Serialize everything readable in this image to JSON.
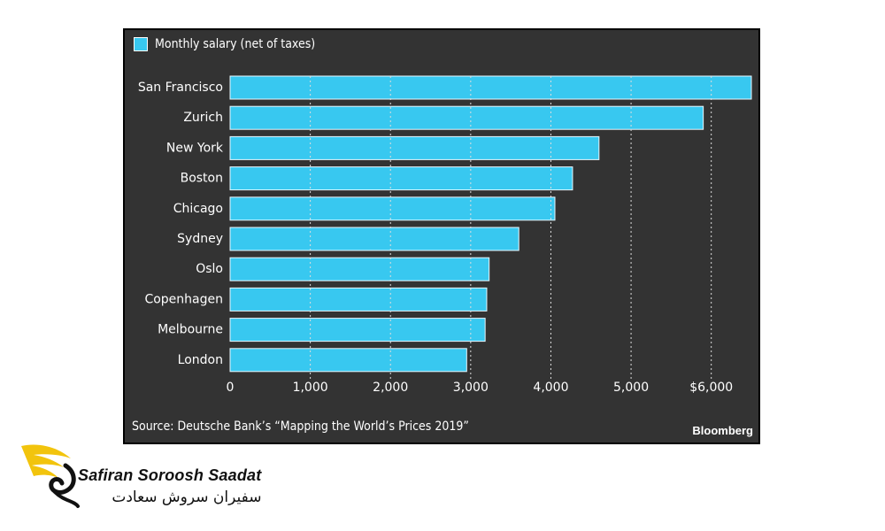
{
  "chart_data": {
    "type": "bar",
    "orientation": "horizontal",
    "categories": [
      "San Francisco",
      "Zurich",
      "New York",
      "Boston",
      "Chicago",
      "Sydney",
      "Oslo",
      "Copenhagen",
      "Melbourne",
      "London"
    ],
    "values": [
      6500,
      5900,
      4600,
      4270,
      4050,
      3600,
      3230,
      3200,
      3180,
      2950
    ],
    "series": [
      {
        "name": "Monthly salary (net of taxes)",
        "color": "#38c8f0"
      }
    ],
    "x_tick_labels": [
      "0",
      "1,000",
      "2,000",
      "3,000",
      "4,000",
      "5,000",
      "$6,000"
    ],
    "x_ticks": [
      0,
      1000,
      2000,
      3000,
      4000,
      5000,
      6000
    ],
    "xlim": [
      0,
      6500
    ],
    "grid": true,
    "legend_position": "top-left",
    "source": "Source: Deutsche Bank’s “Mapping the World’s Prices 2019”",
    "brand": "Bloomberg"
  },
  "colors": {
    "panel": "#333333",
    "bar": "#38c8f0",
    "text": "#ffffff",
    "grid": "#dddddd"
  },
  "watermark": {
    "english": "Safiran Soroosh Saadat",
    "persian": "سفیران سروش سعادت",
    "logo_icon": "swan-wing-logo-icon"
  }
}
